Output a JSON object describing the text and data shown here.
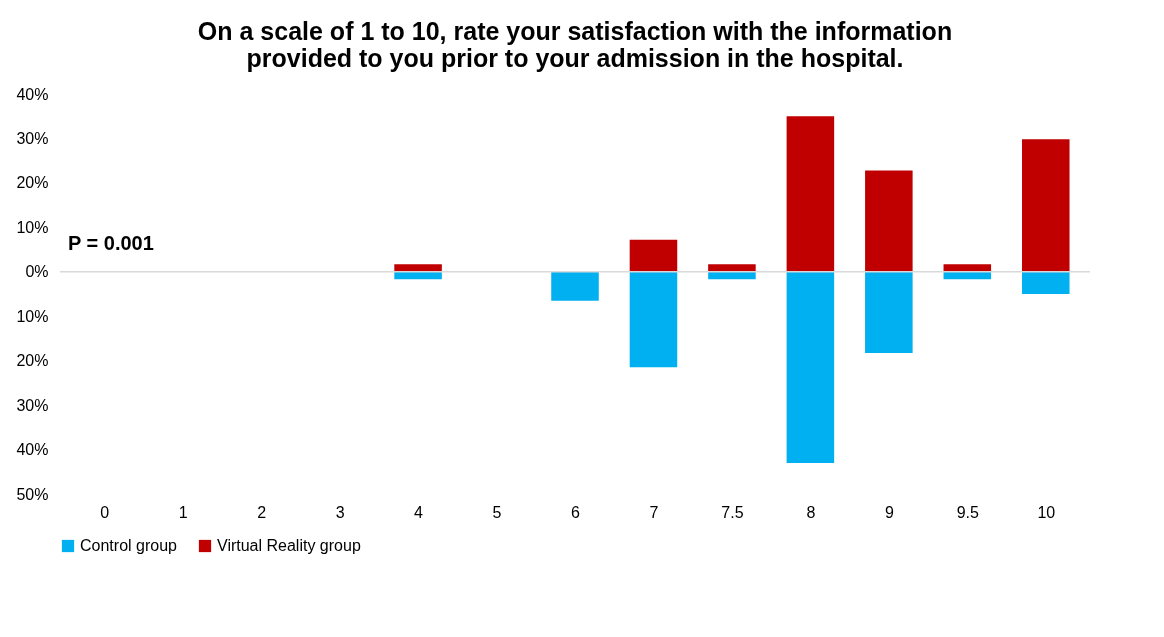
{
  "chart_data": {
    "type": "bar",
    "title": "On a scale of 1 to 10, rate your satisfaction with the information\nprovided to you prior to your admission in the hospital.",
    "categories": [
      "0",
      "1",
      "2",
      "3",
      "4",
      "5",
      "6",
      "7",
      "7.5",
      "8",
      "9",
      "9.5",
      "10"
    ],
    "series": [
      {
        "name": "Control group",
        "color": "#00b0f0",
        "values": [
          null,
          null,
          null,
          null,
          -1.7,
          null,
          -6.5,
          -21.5,
          -1.7,
          -43,
          -18.3,
          -1.7,
          -5
        ]
      },
      {
        "name": "Virtual Reality group",
        "color": "#c00000",
        "values": [
          null,
          null,
          null,
          null,
          1.7,
          null,
          null,
          7.2,
          1.7,
          35,
          22.8,
          1.7,
          29.8
        ]
      }
    ],
    "stacked": true,
    "ylim": [
      -50,
      40
    ],
    "yticks": [
      {
        "value": 40,
        "label": "40%"
      },
      {
        "value": 30,
        "label": "30%"
      },
      {
        "value": 20,
        "label": "20%"
      },
      {
        "value": 10,
        "label": "10%"
      },
      {
        "value": 0,
        "label": "0%"
      },
      {
        "value": -10,
        "label": "10%"
      },
      {
        "value": -20,
        "label": "20%"
      },
      {
        "value": -30,
        "label": "30%"
      },
      {
        "value": -40,
        "label": "40%"
      },
      {
        "value": -50,
        "label": "50%"
      }
    ],
    "annotations": [
      "P = 0.001"
    ],
    "ref_lines": [
      {
        "axis": "y",
        "value": 0,
        "color": "#d9d9d9"
      }
    ],
    "grid": false,
    "legend": "bottom"
  }
}
